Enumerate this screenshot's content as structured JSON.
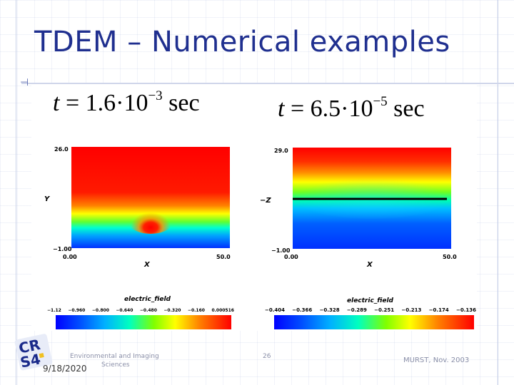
{
  "slide": {
    "title": "TDEM – Numerical examples",
    "bullet_icon": "slide-bullet-icon"
  },
  "panels": [
    {
      "time_label": {
        "t": "t",
        "eq": " = 1.6·10",
        "exp": "−3",
        "unit": " sec"
      },
      "ymax": "26.0",
      "ymin": "−1.00",
      "xmin": "0.00",
      "xmax": "50.0",
      "ylabel": "Y",
      "xlabel": "X",
      "colorbar_title": "electric_field",
      "colorbar_ticks": [
        "−1.12",
        "−0.960",
        "−0.800",
        "−0.640",
        "−0.480",
        "−0.320",
        "−0.160",
        "0.000516"
      ]
    },
    {
      "time_label": {
        "t": "t",
        "eq": " = 6.5·10",
        "exp": "−5",
        "unit": " sec"
      },
      "ymax": "29.0",
      "ymin": "−1.00",
      "xmin": "0.00",
      "xmax": "50.0",
      "ylabel": "−Z",
      "xlabel": "X",
      "colorbar_title": "electric_field",
      "colorbar_ticks": [
        "−0.404",
        "−0.366",
        "−0.328",
        "−0.289",
        "−0.251",
        "−0.213",
        "−0.174",
        "−0.136"
      ]
    }
  ],
  "footer": {
    "date": "9/18/2020",
    "center_line1": "Environmental and Imaging",
    "center_line2": "Sciences",
    "page": "26",
    "right": "MURST, Nov. 2003",
    "logo_text_top": "CR",
    "logo_text_bottom": "S4"
  },
  "colors": {
    "title": "#1f2f8f",
    "footer": "#8a8fa8",
    "logo_blue": "#1a2a8a",
    "logo_accent": "#f0c020"
  }
}
